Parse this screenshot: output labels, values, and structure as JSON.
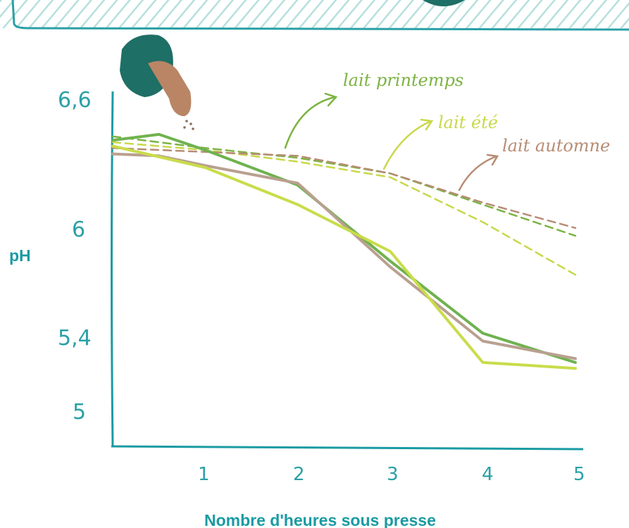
{
  "chart_data": {
    "type": "line",
    "xlabel": "Nombre d'heures sous presse",
    "ylabel": "pH",
    "x_ticks": [
      "1",
      "2",
      "3",
      "4",
      "5"
    ],
    "y_ticks": [
      "6,6",
      "6",
      "5,4",
      "5"
    ],
    "xlim": [
      0,
      5.1
    ],
    "ylim": [
      4.9,
      6.72
    ],
    "series": [
      {
        "name": "lait printemps",
        "color": "#7cb342",
        "style": "dashed",
        "x": [
          0,
          1,
          2,
          3,
          4,
          5
        ],
        "y": [
          6.49,
          6.43,
          6.38,
          6.3,
          6.14,
          5.98
        ]
      },
      {
        "name": "lait été",
        "color": "#c8d84a",
        "style": "dashed",
        "x": [
          0,
          1,
          2,
          3,
          4,
          5
        ],
        "y": [
          6.46,
          6.42,
          6.36,
          6.28,
          6.05,
          5.78
        ]
      },
      {
        "name": "lait automne",
        "color": "#b78c74",
        "style": "dashed",
        "x": [
          0,
          1,
          2,
          3,
          4,
          5
        ],
        "y": [
          6.43,
          6.41,
          6.39,
          6.3,
          6.15,
          6.02
        ]
      },
      {
        "name": "",
        "color": "#6fb24f",
        "style": "solid",
        "x": [
          0,
          0.5,
          1,
          2,
          3,
          4,
          5
        ],
        "y": [
          6.47,
          6.5,
          6.42,
          6.24,
          5.85,
          5.48,
          5.33
        ]
      },
      {
        "name": "",
        "color": "#b9a090",
        "style": "solid",
        "x": [
          0,
          0.5,
          1,
          2,
          3,
          4,
          5
        ],
        "y": [
          6.4,
          6.39,
          6.34,
          6.25,
          5.82,
          5.44,
          5.35
        ]
      },
      {
        "name": "",
        "color": "#c9dc4a",
        "style": "solid",
        "x": [
          0,
          1,
          2,
          3,
          4,
          5
        ],
        "y": [
          6.44,
          6.33,
          6.14,
          5.9,
          5.33,
          5.3
        ]
      }
    ],
    "annotations": [
      {
        "text": "lait printemps",
        "color": "#7cb342"
      },
      {
        "text": "lait été",
        "color": "#c8d84a"
      },
      {
        "text": "lait automne",
        "color": "#b78c74"
      }
    ]
  },
  "colors": {
    "axis": "#1a9ba3",
    "banner": "#4ab0b0",
    "bowl": "#1e6f66"
  }
}
